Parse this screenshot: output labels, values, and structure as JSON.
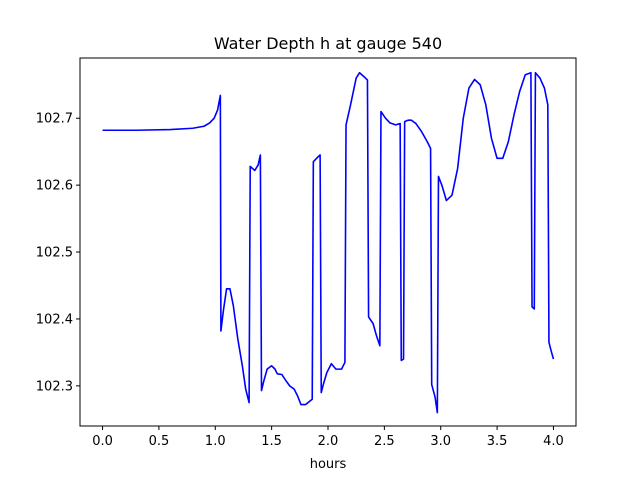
{
  "chart_data": {
    "type": "line",
    "title": "Water Depth h at gauge 540",
    "xlabel": "hours",
    "ylabel": "",
    "xlim": [
      -0.2,
      4.2
    ],
    "ylim": [
      102.24,
      102.79
    ],
    "x_ticks": [
      0.0,
      0.5,
      1.0,
      1.5,
      2.0,
      2.5,
      3.0,
      3.5,
      4.0
    ],
    "x_tick_labels": [
      "0.0",
      "0.5",
      "1.0",
      "1.5",
      "2.0",
      "2.5",
      "3.0",
      "3.5",
      "4.0"
    ],
    "y_ticks": [
      102.3,
      102.4,
      102.5,
      102.6,
      102.7
    ],
    "y_tick_labels": [
      "102.3",
      "102.4",
      "102.5",
      "102.6",
      "102.7"
    ],
    "grid": false,
    "legend": "none",
    "series": [
      {
        "color": "#0000ff",
        "points": [
          [
            0.0,
            102.682
          ],
          [
            0.3,
            102.682
          ],
          [
            0.6,
            102.683
          ],
          [
            0.8,
            102.685
          ],
          [
            0.9,
            102.688
          ],
          [
            0.95,
            102.693
          ],
          [
            0.99,
            102.7
          ],
          [
            1.02,
            102.712
          ],
          [
            1.045,
            102.734
          ],
          [
            1.05,
            102.382
          ],
          [
            1.07,
            102.41
          ],
          [
            1.1,
            102.445
          ],
          [
            1.13,
            102.445
          ],
          [
            1.16,
            102.42
          ],
          [
            1.2,
            102.37
          ],
          [
            1.24,
            102.33
          ],
          [
            1.27,
            102.295
          ],
          [
            1.3,
            102.275
          ],
          [
            1.31,
            102.628
          ],
          [
            1.35,
            102.622
          ],
          [
            1.38,
            102.63
          ],
          [
            1.4,
            102.645
          ],
          [
            1.41,
            102.293
          ],
          [
            1.43,
            102.307
          ],
          [
            1.46,
            102.325
          ],
          [
            1.5,
            102.33
          ],
          [
            1.53,
            102.325
          ],
          [
            1.55,
            102.318
          ],
          [
            1.59,
            102.317
          ],
          [
            1.63,
            102.307
          ],
          [
            1.66,
            102.3
          ],
          [
            1.7,
            102.295
          ],
          [
            1.73,
            102.285
          ],
          [
            1.76,
            102.272
          ],
          [
            1.8,
            102.272
          ],
          [
            1.86,
            102.28
          ],
          [
            1.87,
            102.635
          ],
          [
            1.91,
            102.642
          ],
          [
            1.93,
            102.645
          ],
          [
            1.94,
            102.29
          ],
          [
            1.96,
            102.303
          ],
          [
            1.99,
            102.32
          ],
          [
            2.03,
            102.333
          ],
          [
            2.07,
            102.325
          ],
          [
            2.12,
            102.325
          ],
          [
            2.15,
            102.335
          ],
          [
            2.16,
            102.69
          ],
          [
            2.2,
            102.72
          ],
          [
            2.25,
            102.76
          ],
          [
            2.28,
            102.768
          ],
          [
            2.32,
            102.762
          ],
          [
            2.35,
            102.757
          ],
          [
            2.36,
            102.403
          ],
          [
            2.4,
            102.393
          ],
          [
            2.43,
            102.375
          ],
          [
            2.46,
            102.36
          ],
          [
            2.47,
            102.71
          ],
          [
            2.51,
            102.7
          ],
          [
            2.55,
            102.693
          ],
          [
            2.6,
            102.69
          ],
          [
            2.64,
            102.692
          ],
          [
            2.65,
            102.338
          ],
          [
            2.67,
            102.34
          ],
          [
            2.68,
            102.695
          ],
          [
            2.71,
            102.697
          ],
          [
            2.74,
            102.697
          ],
          [
            2.78,
            102.692
          ],
          [
            2.83,
            102.68
          ],
          [
            2.88,
            102.665
          ],
          [
            2.91,
            102.655
          ],
          [
            2.92,
            102.302
          ],
          [
            2.95,
            102.283
          ],
          [
            2.97,
            102.26
          ],
          [
            2.98,
            102.613
          ],
          [
            3.01,
            102.6
          ],
          [
            3.05,
            102.577
          ],
          [
            3.1,
            102.585
          ],
          [
            3.15,
            102.625
          ],
          [
            3.2,
            102.7
          ],
          [
            3.25,
            102.745
          ],
          [
            3.3,
            102.758
          ],
          [
            3.35,
            102.75
          ],
          [
            3.4,
            102.72
          ],
          [
            3.45,
            102.67
          ],
          [
            3.5,
            102.64
          ],
          [
            3.55,
            102.64
          ],
          [
            3.6,
            102.665
          ],
          [
            3.65,
            102.705
          ],
          [
            3.7,
            102.74
          ],
          [
            3.75,
            102.765
          ],
          [
            3.8,
            102.768
          ],
          [
            3.81,
            102.418
          ],
          [
            3.83,
            102.415
          ],
          [
            3.84,
            102.768
          ],
          [
            3.88,
            102.76
          ],
          [
            3.92,
            102.745
          ],
          [
            3.95,
            102.72
          ],
          [
            3.96,
            102.365
          ],
          [
            3.98,
            102.352
          ],
          [
            4.0,
            102.34
          ]
        ]
      }
    ]
  }
}
